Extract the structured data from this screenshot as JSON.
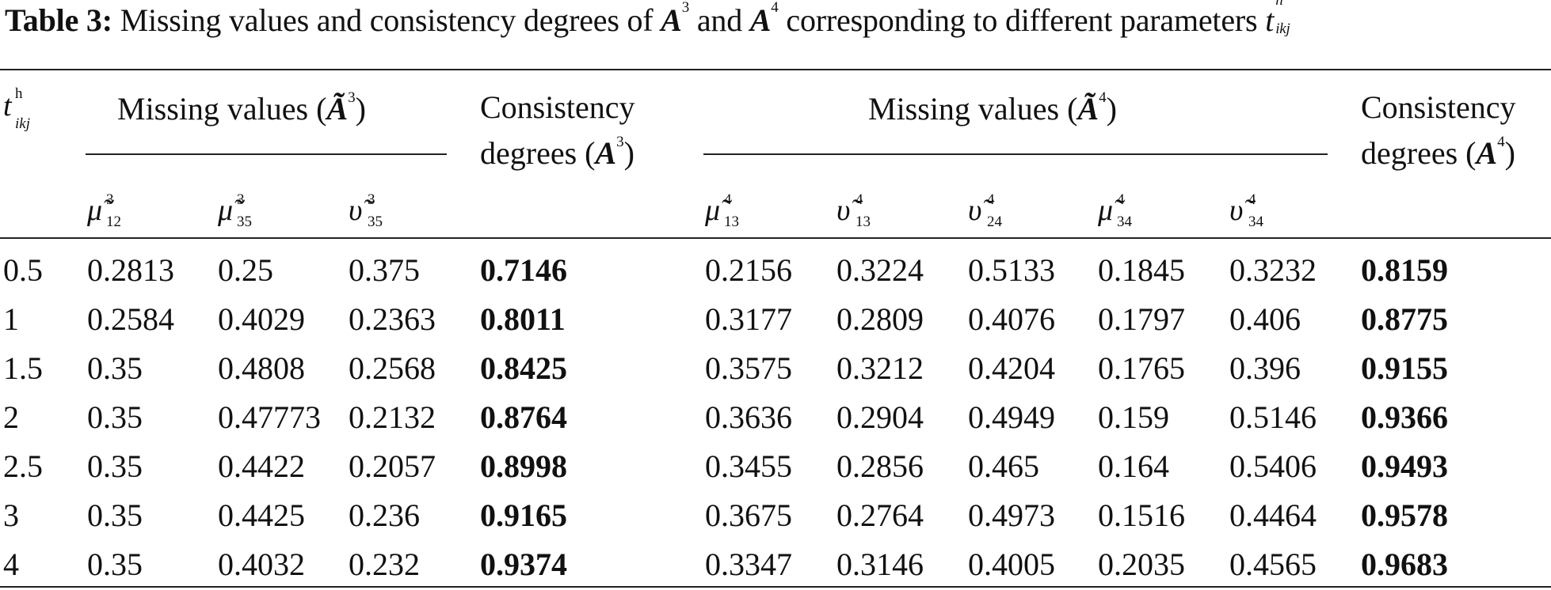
{
  "caption": {
    "label": "Table 3:",
    "text_1": "Missing values and consistency degrees of",
    "a3": "A",
    "a3_sup": "3",
    "and": "and",
    "a4": "A",
    "a4_sup": "4",
    "text_2": "corresponding to different parameters",
    "t": "t",
    "t_sup": "h",
    "t_sub": "ikj"
  },
  "header": {
    "t_symbol": "t",
    "t_sup": "h",
    "t_sub": "ikj",
    "mv3_label": "Missing values (",
    "mv3_A": "Ã",
    "mv3_sup": "3",
    "mv3_close": ")",
    "cd3_line1": "Consistency",
    "cd3_line2": "degrees (",
    "cd3_A": "A",
    "cd3_sup": "3",
    "cd3_close": ")",
    "mv4_label": "Missing values (",
    "mv4_A": "Ã",
    "mv4_sup": "4",
    "mv4_close": ")",
    "cd4_line1": "Consistency",
    "cd4_line2": "degrees (",
    "cd4_A": "A",
    "cd4_sup": "4",
    "cd4_close": ")",
    "sub_columns": [
      {
        "sym": "μ̃",
        "sup": "3",
        "sub": "12"
      },
      {
        "sym": "μ̃",
        "sup": "3",
        "sub": "35"
      },
      {
        "sym": "υ̃",
        "sup": "3",
        "sub": "35"
      },
      {
        "sym": "μ̃",
        "sup": "4",
        "sub": "13"
      },
      {
        "sym": "υ̃",
        "sup": "4",
        "sub": "13"
      },
      {
        "sym": "υ̃",
        "sup": "4",
        "sub": "24"
      },
      {
        "sym": "μ̃",
        "sup": "4",
        "sub": "34"
      },
      {
        "sym": "υ̃",
        "sup": "4",
        "sub": "34"
      }
    ]
  },
  "rows": [
    [
      "0.5",
      "0.2813",
      "0.25",
      "0.375",
      "0.7146",
      "0.2156",
      "0.3224",
      "0.5133",
      "0.1845",
      "0.3232",
      "0.8159"
    ],
    [
      "1",
      "0.2584",
      "0.4029",
      "0.2363",
      "0.8011",
      "0.3177",
      "0.2809",
      "0.4076",
      "0.1797",
      "0.406",
      "0.8775"
    ],
    [
      "1.5",
      "0.35",
      "0.4808",
      "0.2568",
      "0.8425",
      "0.3575",
      "0.3212",
      "0.4204",
      "0.1765",
      "0.396",
      "0.9155"
    ],
    [
      "2",
      "0.35",
      "0.47773",
      "0.2132",
      "0.8764",
      "0.3636",
      "0.2904",
      "0.4949",
      "0.159",
      "0.5146",
      "0.9366"
    ],
    [
      "2.5",
      "0.35",
      "0.4422",
      "0.2057",
      "0.8998",
      "0.3455",
      "0.2856",
      "0.465",
      "0.164",
      "0.5406",
      "0.9493"
    ],
    [
      "3",
      "0.35",
      "0.4425",
      "0.236",
      "0.9165",
      "0.3675",
      "0.2764",
      "0.4973",
      "0.1516",
      "0.4464",
      "0.9578"
    ],
    [
      "4",
      "0.35",
      "0.4032",
      "0.232",
      "0.9374",
      "0.3347",
      "0.3146",
      "0.4005",
      "0.2035",
      "0.4565",
      "0.9683"
    ]
  ]
}
